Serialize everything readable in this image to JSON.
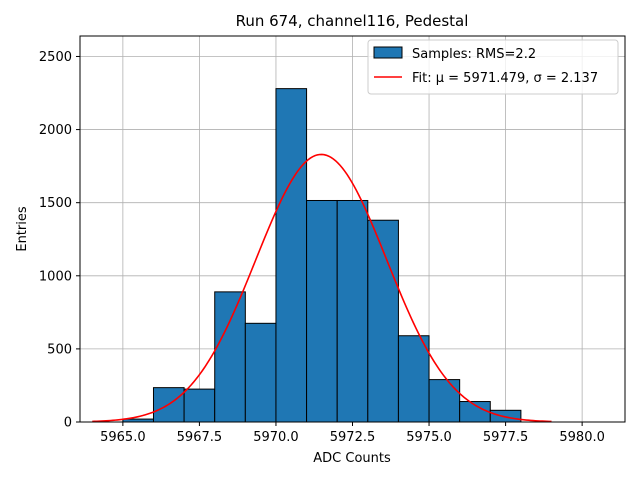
{
  "chart_data": {
    "type": "bar",
    "title": "Run 674, channel116, Pedestal",
    "xlabel": "ADC Counts",
    "ylabel": "Entries",
    "xlim": [
      5963.6,
      5981.4
    ],
    "ylim": [
      0,
      2640
    ],
    "xticks": [
      5965.0,
      5967.5,
      5970.0,
      5972.5,
      5975.0,
      5977.5,
      5980.0
    ],
    "xtick_labels": [
      "5965.0",
      "5967.5",
      "5970.0",
      "5972.5",
      "5975.0",
      "5977.5",
      "5980.0"
    ],
    "yticks": [
      0,
      500,
      1000,
      1500,
      2000,
      2500
    ],
    "ytick_labels": [
      "0",
      "500",
      "1000",
      "1500",
      "2000",
      "2500"
    ],
    "grid": true,
    "legend_position": "top-right",
    "histogram": {
      "name": "Samples: RMS=2.2",
      "color": "#1f77b4",
      "edgecolor": "#000000",
      "bin_edges": [
        5965,
        5966,
        5967,
        5968,
        5969,
        5970,
        5971,
        5972,
        5973,
        5974,
        5975,
        5976,
        5977,
        5978
      ],
      "counts": [
        20,
        235,
        225,
        890,
        675,
        2280,
        1515,
        1515,
        1380,
        590,
        290,
        140,
        80
      ]
    },
    "fit": {
      "name": "Fit: μ = 5971.479, σ = 2.137",
      "color": "#ff0000",
      "mu": 5971.479,
      "sigma": 2.137,
      "x_range": [
        5964,
        5979
      ],
      "peak": 1830
    }
  }
}
